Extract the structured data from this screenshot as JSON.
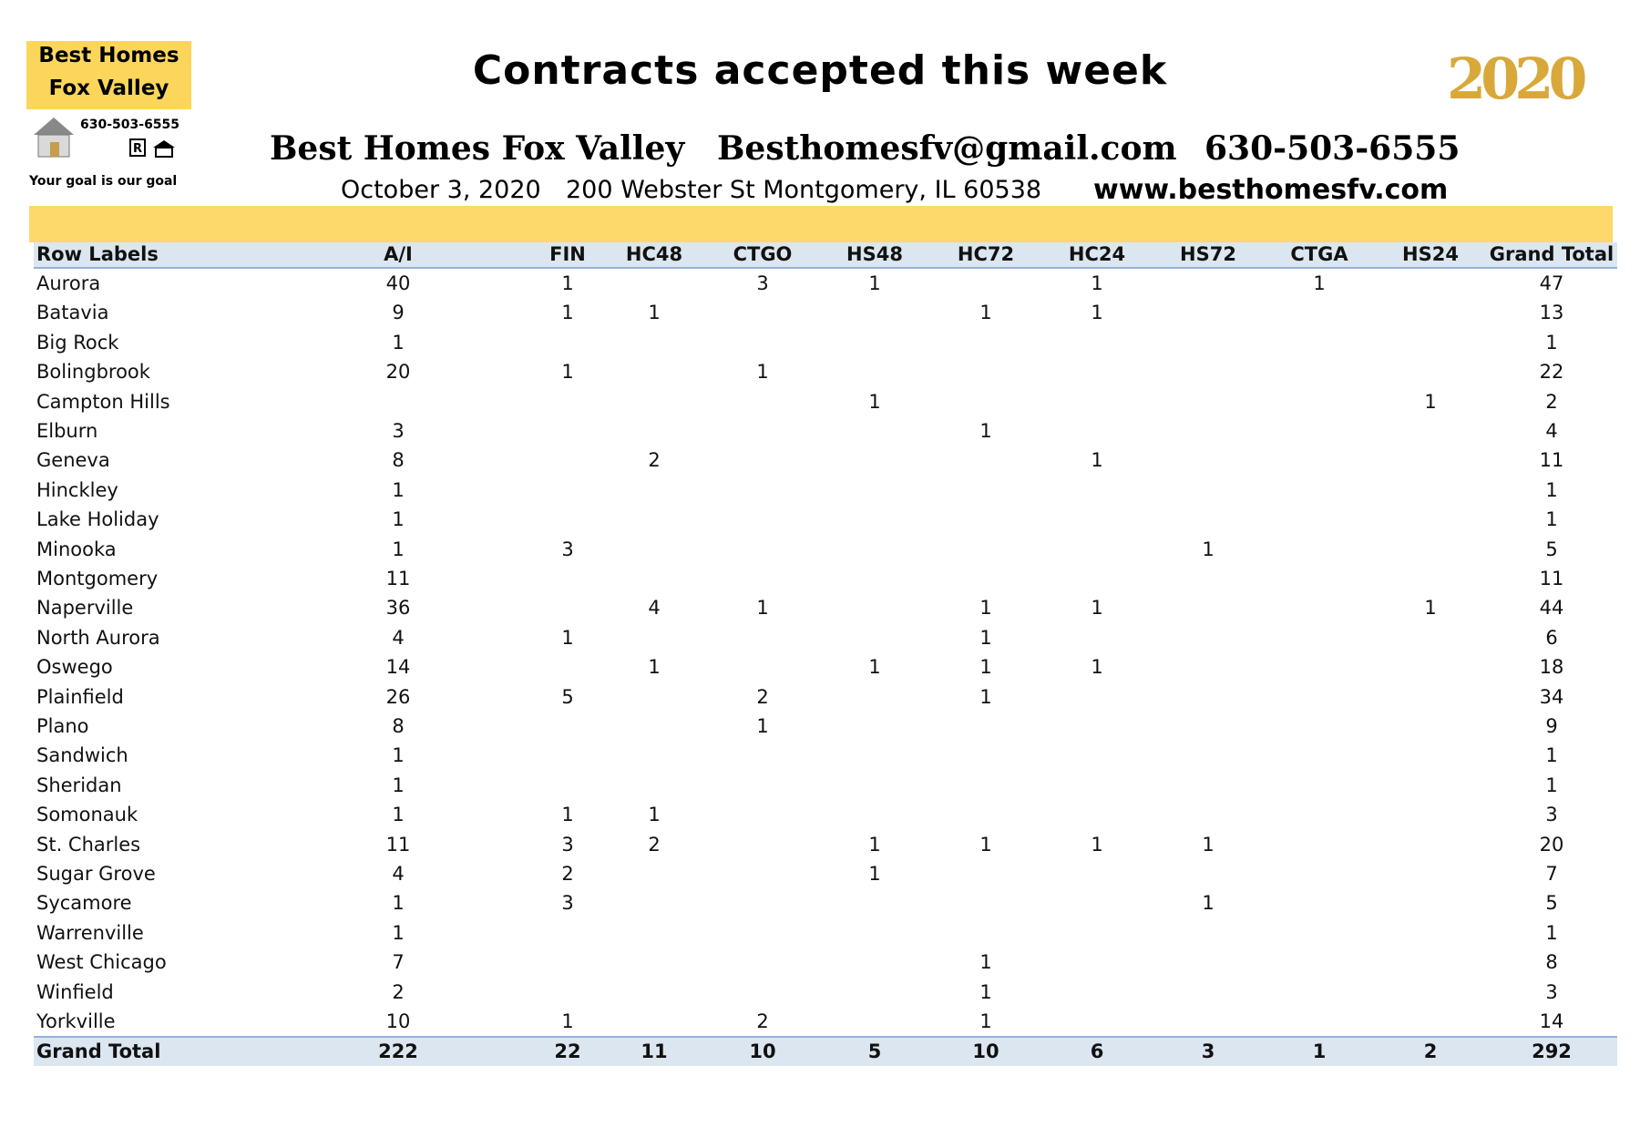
{
  "header": {
    "logo_line1": "Best Homes",
    "logo_line2": "Fox Valley",
    "logo_phone": "630-503-6555",
    "logo_tagline": "Your goal is our goal",
    "title": "Contracts accepted this week",
    "badge": "2020",
    "company": "Best Homes Fox Valley",
    "email": "Besthomesfv@gmail.com",
    "phone": "630-503-6555",
    "date": "October 3, 2020",
    "address": "200 Webster St Montgomery, IL 60538",
    "website": "www.besthomesfv.com"
  },
  "table": {
    "columns": [
      "Row Labels",
      "A/I",
      "FIN",
      "HC48",
      "CTGO",
      "HS48",
      "HC72",
      "HC24",
      "HS72",
      "CTGA",
      "HS24",
      "Grand Total"
    ],
    "rows": [
      [
        "Aurora",
        40,
        1,
        null,
        3,
        1,
        null,
        1,
        null,
        1,
        null,
        47
      ],
      [
        "Batavia",
        9,
        1,
        1,
        null,
        null,
        1,
        1,
        null,
        null,
        null,
        13
      ],
      [
        "Big Rock",
        1,
        null,
        null,
        null,
        null,
        null,
        null,
        null,
        null,
        null,
        1
      ],
      [
        "Bolingbrook",
        20,
        1,
        null,
        1,
        null,
        null,
        null,
        null,
        null,
        null,
        22
      ],
      [
        "Campton Hills",
        null,
        null,
        null,
        null,
        1,
        null,
        null,
        null,
        null,
        1,
        2
      ],
      [
        "Elburn",
        3,
        null,
        null,
        null,
        null,
        1,
        null,
        null,
        null,
        null,
        4
      ],
      [
        "Geneva",
        8,
        null,
        2,
        null,
        null,
        null,
        1,
        null,
        null,
        null,
        11
      ],
      [
        "Hinckley",
        1,
        null,
        null,
        null,
        null,
        null,
        null,
        null,
        null,
        null,
        1
      ],
      [
        "Lake Holiday",
        1,
        null,
        null,
        null,
        null,
        null,
        null,
        null,
        null,
        null,
        1
      ],
      [
        "Minooka",
        1,
        3,
        null,
        null,
        null,
        null,
        null,
        1,
        null,
        null,
        5
      ],
      [
        "Montgomery",
        11,
        null,
        null,
        null,
        null,
        null,
        null,
        null,
        null,
        null,
        11
      ],
      [
        "Naperville",
        36,
        null,
        4,
        1,
        null,
        1,
        1,
        null,
        null,
        1,
        44
      ],
      [
        "North Aurora",
        4,
        1,
        null,
        null,
        null,
        1,
        null,
        null,
        null,
        null,
        6
      ],
      [
        "Oswego",
        14,
        null,
        1,
        null,
        1,
        1,
        1,
        null,
        null,
        null,
        18
      ],
      [
        "Plainfield",
        26,
        5,
        null,
        2,
        null,
        1,
        null,
        null,
        null,
        null,
        34
      ],
      [
        "Plano",
        8,
        null,
        null,
        1,
        null,
        null,
        null,
        null,
        null,
        null,
        9
      ],
      [
        "Sandwich",
        1,
        null,
        null,
        null,
        null,
        null,
        null,
        null,
        null,
        null,
        1
      ],
      [
        "Sheridan",
        1,
        null,
        null,
        null,
        null,
        null,
        null,
        null,
        null,
        null,
        1
      ],
      [
        "Somonauk",
        1,
        1,
        1,
        null,
        null,
        null,
        null,
        null,
        null,
        null,
        3
      ],
      [
        "St. Charles",
        11,
        3,
        2,
        null,
        1,
        1,
        1,
        1,
        null,
        null,
        20
      ],
      [
        "Sugar Grove",
        4,
        2,
        null,
        null,
        1,
        null,
        null,
        null,
        null,
        null,
        7
      ],
      [
        "Sycamore",
        1,
        3,
        null,
        null,
        null,
        null,
        null,
        1,
        null,
        null,
        5
      ],
      [
        "Warrenville",
        1,
        null,
        null,
        null,
        null,
        null,
        null,
        null,
        null,
        null,
        1
      ],
      [
        "West Chicago",
        7,
        null,
        null,
        null,
        null,
        1,
        null,
        null,
        null,
        null,
        8
      ],
      [
        "Winfield",
        2,
        null,
        null,
        null,
        null,
        1,
        null,
        null,
        null,
        null,
        3
      ],
      [
        "Yorkville",
        10,
        1,
        null,
        2,
        null,
        1,
        null,
        null,
        null,
        null,
        14
      ]
    ],
    "total": [
      "Grand Total",
      222,
      22,
      11,
      10,
      5,
      10,
      6,
      3,
      1,
      2,
      292
    ]
  }
}
